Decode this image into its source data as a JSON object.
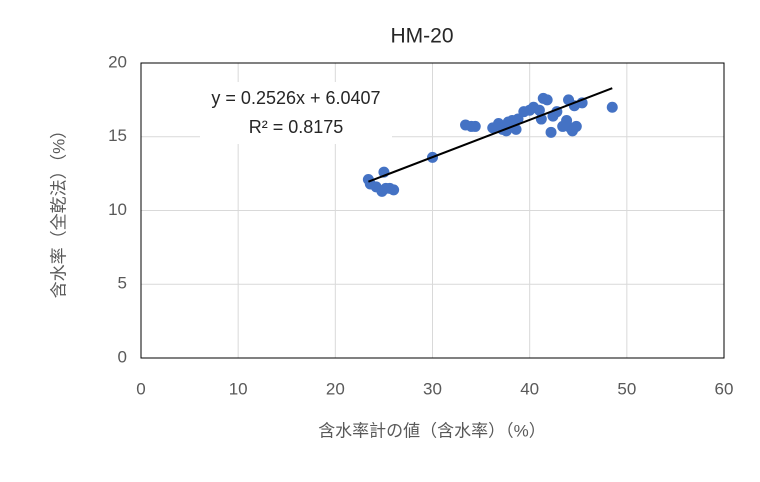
{
  "chart_data": {
    "type": "scatter",
    "title": "HM-20",
    "x_label": "含水率計の値（含水率）（%）",
    "y_label": "含水率（全乾法）（%）",
    "series": [
      {
        "color": "#4472c4",
        "x": [
          23.4,
          23.6,
          24.2,
          24.8,
          25.0,
          25.2,
          25.6,
          26.0,
          30.0,
          33.4,
          34.0,
          34.4,
          36.2,
          36.8,
          37.2,
          37.6,
          37.8,
          38.2,
          38.6,
          38.8,
          39.4,
          40.0,
          40.4,
          41.0,
          41.2,
          41.4,
          41.8,
          42.2,
          42.4,
          42.8,
          43.4,
          43.8,
          44.0,
          44.2,
          44.4,
          44.6,
          44.8,
          45.4,
          48.5
        ],
        "values": [
          12.1,
          11.8,
          11.6,
          11.3,
          12.6,
          11.5,
          11.5,
          11.4,
          13.6,
          15.8,
          15.7,
          15.7,
          15.6,
          15.9,
          15.5,
          15.4,
          16.0,
          16.1,
          15.5,
          16.2,
          16.7,
          16.8,
          17.0,
          16.8,
          16.2,
          17.6,
          17.5,
          15.3,
          16.4,
          16.7,
          15.7,
          16.1,
          17.5,
          15.6,
          15.4,
          17.1,
          15.7,
          17.3,
          17.0
        ]
      }
    ],
    "trendline": {
      "slope": 0.2526,
      "intercept": 6.0407,
      "color": "#000000",
      "equation": "y = 0.2526x + 6.0407",
      "r_squared": "R² = 0.8175"
    },
    "xlim": [
      0,
      60
    ],
    "xticks": [
      0,
      10,
      20,
      30,
      40,
      50,
      60
    ],
    "ylim": [
      0,
      20
    ],
    "yticks": [
      0,
      5,
      10,
      15,
      20
    ],
    "grid": true
  }
}
